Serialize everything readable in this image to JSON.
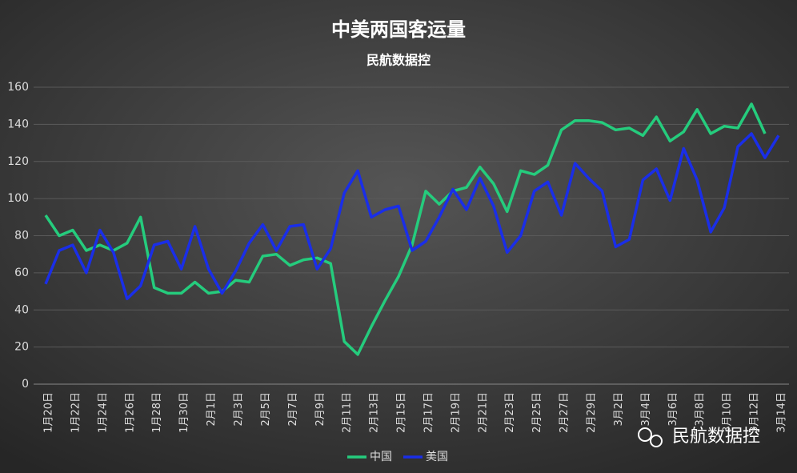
{
  "chart_data": {
    "type": "line",
    "title": "中美两国客运量",
    "subtitle": "民航数据控",
    "watermark": "民航数据控",
    "categories": [
      "1月20日",
      null,
      "1月22日",
      null,
      "1月24日",
      null,
      "1月26日",
      null,
      "1月28日",
      null,
      "1月30日",
      null,
      "2月1日",
      null,
      "2月3日",
      null,
      "2月5日",
      null,
      "2月7日",
      null,
      "2月9日",
      null,
      "2月11日",
      null,
      "2月13日",
      null,
      "2月15日",
      null,
      "2月17日",
      null,
      "2月19日",
      null,
      "2月21日",
      null,
      "2月23日",
      null,
      "2月25日",
      null,
      "2月27日",
      null,
      "2月29日",
      null,
      "3月2日",
      null,
      "3月4日",
      null,
      "3月6日",
      null,
      "3月8日",
      null,
      "3月10日",
      null,
      "3月12日",
      null,
      "3月14日"
    ],
    "series": [
      {
        "name": "中国",
        "color": "#25cc7d",
        "values": [
          91,
          80,
          83,
          72,
          75,
          72,
          76,
          90,
          52,
          49,
          49,
          55,
          49,
          50,
          56,
          55,
          69,
          70,
          64,
          67,
          68,
          65,
          23,
          16,
          31,
          45,
          58,
          75,
          104,
          97,
          104,
          106,
          117,
          108,
          93,
          115,
          113,
          118,
          137,
          142,
          142,
          141,
          137,
          138,
          134,
          144,
          131,
          136,
          148,
          135,
          139,
          138,
          151,
          135,
          null
        ]
      },
      {
        "name": "美国",
        "color": "#1a2ee8",
        "values": [
          54,
          72,
          75,
          60,
          83,
          71,
          46,
          53,
          75,
          77,
          62,
          85,
          62,
          49,
          61,
          76,
          86,
          72,
          85,
          86,
          62,
          73,
          103,
          115,
          90,
          94,
          96,
          72,
          77,
          90,
          105,
          94,
          111,
          96,
          71,
          80,
          104,
          109,
          91,
          119,
          111,
          104,
          74,
          78,
          110,
          116,
          99,
          127,
          110,
          82,
          95,
          128,
          135,
          122,
          134
        ]
      }
    ],
    "ylim": [
      0,
      160
    ],
    "yticks": [
      0,
      20,
      40,
      60,
      80,
      100,
      120,
      140,
      160
    ],
    "grid": true,
    "legend": "bottom"
  }
}
